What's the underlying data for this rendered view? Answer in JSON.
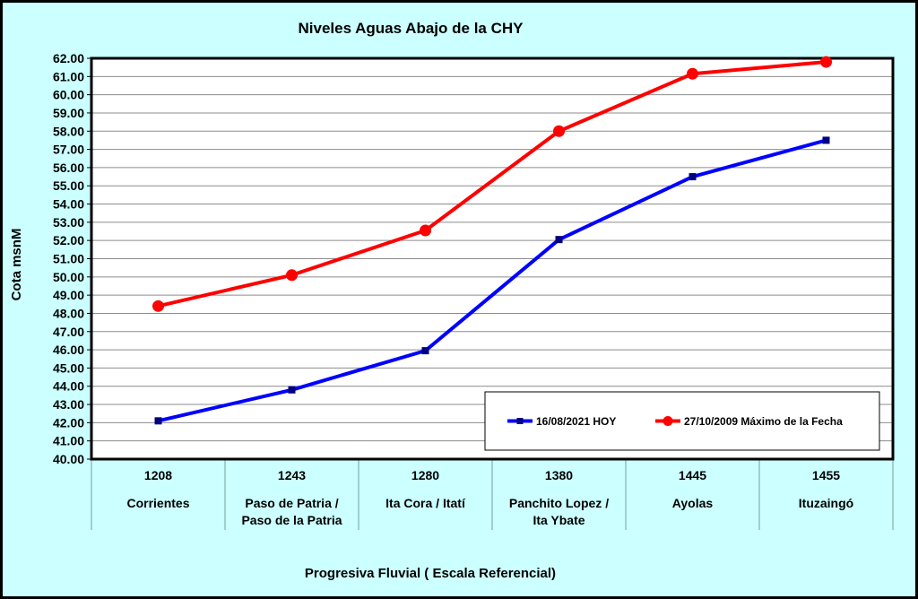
{
  "chart_data": {
    "type": "line",
    "title": "Niveles Aguas Abajo de la CHY",
    "xlabel": "Progresiva Fluvial ( Escala Referencial)",
    "ylabel": "Cota msnM",
    "ylim": [
      40,
      62
    ],
    "ytick_step": 1,
    "grid": true,
    "legend_position": "bottom-right",
    "categories": [
      {
        "code": "1208",
        "name": [
          "Corrientes"
        ]
      },
      {
        "code": "1243",
        "name": [
          "Paso de Patria /",
          "Paso de la Patria"
        ]
      },
      {
        "code": "1280",
        "name": [
          "Ita Cora / Itatí"
        ]
      },
      {
        "code": "1380",
        "name": [
          "Panchito Lopez /",
          "Ita Ybate"
        ]
      },
      {
        "code": "1445",
        "name": [
          "Ayolas"
        ]
      },
      {
        "code": "1455",
        "name": [
          "Ituzaingó"
        ]
      }
    ],
    "series": [
      {
        "name": "16/08/2021 HOY",
        "color": "#0000ff",
        "marker": "square",
        "values": [
          42.1,
          43.8,
          45.95,
          52.05,
          55.5,
          57.5
        ]
      },
      {
        "name": "27/10/2009 Máximo de la Fecha",
        "color": "#ff0000",
        "marker": "circle",
        "values": [
          48.4,
          50.1,
          52.55,
          58.0,
          61.15,
          61.8
        ]
      }
    ]
  }
}
